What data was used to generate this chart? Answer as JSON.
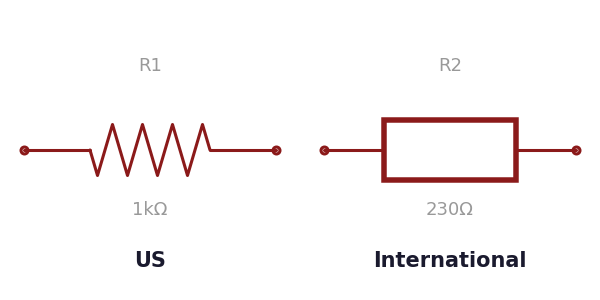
{
  "bg_color": "#ffffff",
  "resistor_color": "#8B1A1A",
  "label_color": "#999999",
  "title_color": "#1a1a2e",
  "us_label": "R1",
  "us_value": "1kΩ",
  "us_title": "US",
  "intl_label": "R2",
  "intl_value": "230Ω",
  "intl_title": "International",
  "line_width": 2.2,
  "dot_size": 25,
  "label_fontsize": 13,
  "value_fontsize": 13,
  "title_fontsize": 15
}
